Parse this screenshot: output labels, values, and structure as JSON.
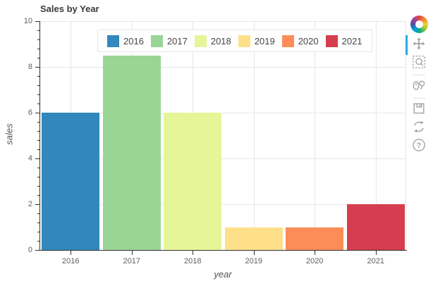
{
  "window": {
    "title": "Sales by Year"
  },
  "chart_data": {
    "type": "bar",
    "title": "Sales by Year",
    "xlabel": "year",
    "ylabel": "sales",
    "categories": [
      "2016",
      "2017",
      "2018",
      "2019",
      "2020",
      "2021"
    ],
    "values": [
      6,
      8.5,
      6,
      1,
      1,
      2
    ],
    "bar_colors": [
      "#3288bd",
      "#99d594",
      "#e6f598",
      "#fee08b",
      "#fc8d59",
      "#d53e4f"
    ],
    "ylim": [
      0,
      10
    ],
    "y_major_ticks": [
      0,
      2,
      4,
      6,
      8,
      10
    ],
    "y_minor_step": 0.4,
    "grid": true,
    "legend": {
      "position": "top-center",
      "entries": [
        {
          "label": "2016",
          "color": "#3288bd"
        },
        {
          "label": "2017",
          "color": "#99d594"
        },
        {
          "label": "2018",
          "color": "#e6f598"
        },
        {
          "label": "2019",
          "color": "#fee08b"
        },
        {
          "label": "2020",
          "color": "#fc8d59"
        },
        {
          "label": "2021",
          "color": "#d53e4f"
        }
      ]
    }
  },
  "toolbar": {
    "tools": [
      {
        "id": "pan",
        "active": true
      },
      {
        "id": "box-zoom",
        "active": false
      },
      {
        "id": "wheel-zoom",
        "active": false
      },
      {
        "id": "save",
        "active": false
      },
      {
        "id": "reset",
        "active": false
      },
      {
        "id": "help",
        "active": false
      }
    ],
    "active_indicator_color": "#26aae1"
  },
  "style": {
    "grid_color": "#e6e6e6",
    "axis_color": "#2f2f2f",
    "tick_label_color": "#5f5f5f",
    "icon_color": "#a3a3a3"
  }
}
